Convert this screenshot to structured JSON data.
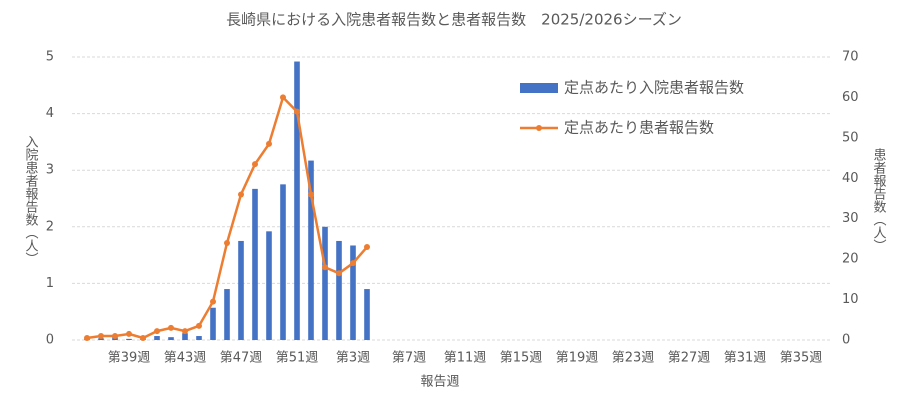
{
  "chart_data": {
    "type": "bar_line",
    "title": "長崎県における入院患者報告数と患者報告数　2025/2026シーズン",
    "xlabel": "報告週",
    "ylabel": "入院患者報告数（人）",
    "y2label": "患者報告数（人）",
    "categories": [
      null,
      null,
      null,
      "第39週",
      null,
      null,
      null,
      "第43週",
      null,
      null,
      null,
      "第47週",
      null,
      null,
      null,
      "第51週",
      null,
      null,
      null,
      "第3週",
      null,
      null,
      null,
      "第7週",
      null,
      null,
      null,
      "第11週",
      null,
      null,
      null,
      "第15週",
      null,
      null,
      null,
      "第19週",
      null,
      null,
      null,
      "第23週",
      null,
      null,
      null,
      "第27週",
      null,
      null,
      null,
      "第31週",
      null,
      null,
      null,
      "第35週"
    ],
    "series": [
      {
        "name": "定点あたり入院患者報告数",
        "type": "bar",
        "color": "#4472c4",
        "values": [
          0.02,
          0.03,
          0.05,
          0.02,
          0.02,
          0.07,
          0.05,
          0.12,
          0.07,
          0.57,
          0.9,
          1.75,
          2.67,
          1.92,
          2.75,
          4.92,
          3.17,
          2.0,
          1.75,
          1.67,
          0.9,
          null,
          null,
          null,
          null,
          null,
          null,
          null,
          null,
          null,
          null,
          null,
          null,
          null,
          null,
          null,
          null,
          null,
          null,
          null,
          null,
          null,
          null,
          null,
          null,
          null,
          null,
          null,
          null,
          null,
          null,
          null
        ]
      },
      {
        "name": "定点あたり患者報告数",
        "type": "line",
        "axis": "y2",
        "color": "#ed7d31",
        "values": [
          0.5,
          1,
          1,
          1.5,
          0.5,
          2.2,
          3,
          2.2,
          3.5,
          9.5,
          24,
          36,
          43.5,
          48.5,
          60,
          56.5,
          36,
          18,
          16.5,
          19,
          23,
          null,
          null,
          null,
          null,
          null,
          null,
          null,
          null,
          null,
          null,
          null,
          null,
          null,
          null,
          null,
          null,
          null,
          null,
          null,
          null,
          null,
          null,
          null,
          null,
          null,
          null,
          null,
          null,
          null,
          null,
          null
        ]
      }
    ],
    "ylim": [
      0,
      5
    ],
    "yticks": [
      0,
      1,
      2,
      3,
      4,
      5
    ],
    "y2lim": [
      0,
      70
    ],
    "y2ticks": [
      0,
      10,
      20,
      30,
      40,
      50,
      60,
      70
    ],
    "grid": true,
    "legend": "upper right"
  }
}
